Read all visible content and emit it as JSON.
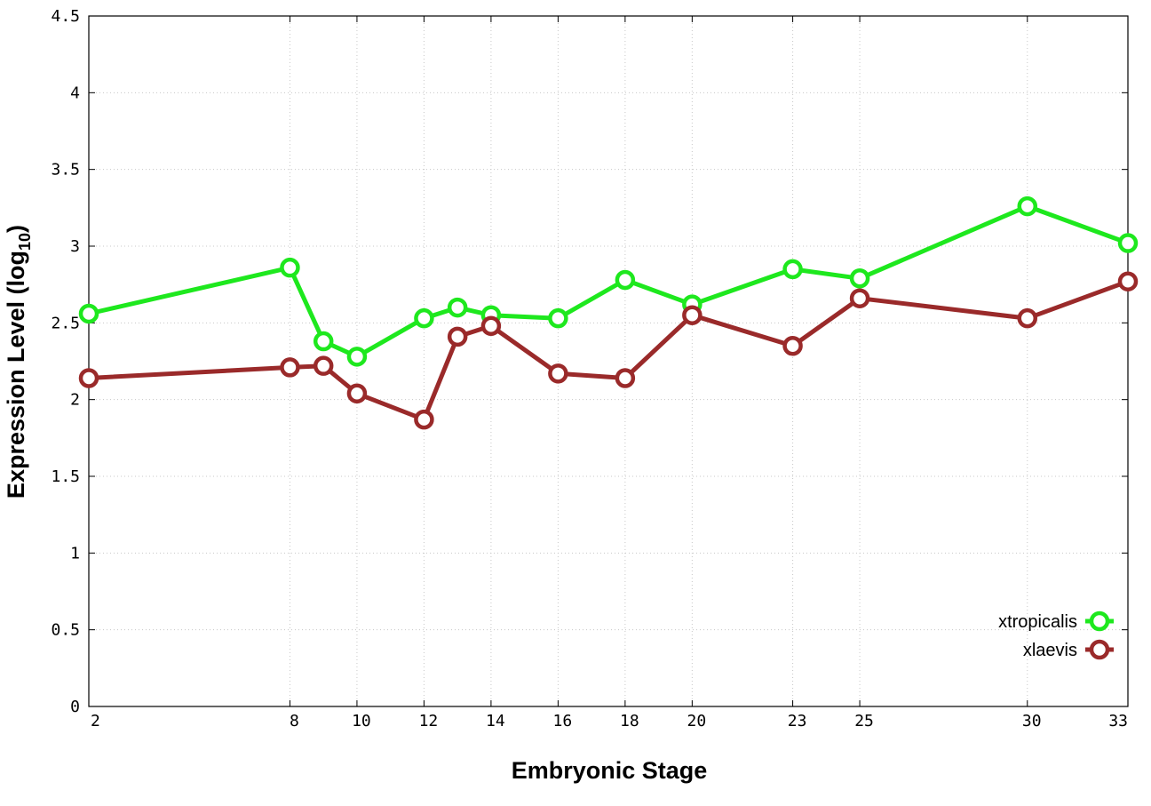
{
  "chart_data": {
    "type": "line",
    "xlabel": "Embryonic Stage",
    "ylabel": "Expression Level (log",
    "ylabel_subscript": "10",
    "ylabel_suffix": ")",
    "xlim": [
      2,
      33
    ],
    "ylim": [
      0,
      4.5
    ],
    "x_ticks": [
      2,
      8,
      10,
      12,
      14,
      16,
      18,
      20,
      23,
      25,
      30,
      33
    ],
    "y_ticks": [
      0,
      0.5,
      1,
      1.5,
      2,
      2.5,
      3,
      3.5,
      4,
      4.5
    ],
    "grid": true,
    "legend_position": "bottom-right",
    "x": [
      2,
      8,
      9,
      10,
      12,
      13,
      14,
      16,
      18,
      20,
      23,
      25,
      30,
      33
    ],
    "series": [
      {
        "name": "xtropicalis",
        "color": "#1ee81e",
        "values": [
          2.56,
          2.86,
          2.38,
          2.28,
          2.53,
          2.6,
          2.55,
          2.53,
          2.78,
          2.62,
          2.85,
          2.79,
          3.26,
          3.02
        ]
      },
      {
        "name": "xlaevis",
        "color": "#9a2a2a",
        "values": [
          2.14,
          2.21,
          2.22,
          2.04,
          1.87,
          2.41,
          2.48,
          2.17,
          2.14,
          2.55,
          2.35,
          2.66,
          2.53,
          2.77
        ]
      }
    ]
  }
}
